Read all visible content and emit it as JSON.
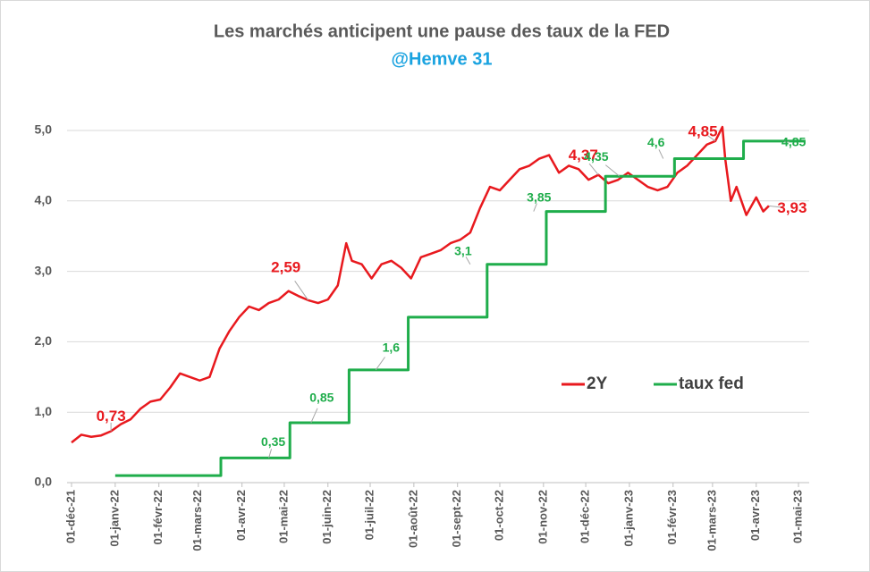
{
  "chart_data": {
    "type": "line",
    "title": "Les marchés anticipent une pause des taux de la FED",
    "subtitle": "@Hemve 31",
    "xlim": [
      "2021-12-01",
      "2023-05-01"
    ],
    "xticks": [
      {
        "value": "2021-12-01",
        "label": "01-déc-21"
      },
      {
        "value": "2022-01-01",
        "label": "01-janv-22"
      },
      {
        "value": "2022-02-01",
        "label": "01-févr-22"
      },
      {
        "value": "2022-03-01",
        "label": "01-mars-22"
      },
      {
        "value": "2022-04-01",
        "label": "01-avr-22"
      },
      {
        "value": "2022-05-01",
        "label": "01-mai-22"
      },
      {
        "value": "2022-06-01",
        "label": "01-juin-22"
      },
      {
        "value": "2022-07-01",
        "label": "01-juil-22"
      },
      {
        "value": "2022-08-01",
        "label": "01-août-22"
      },
      {
        "value": "2022-09-01",
        "label": "01-sept-22"
      },
      {
        "value": "2022-10-01",
        "label": "01-oct-22"
      },
      {
        "value": "2022-11-01",
        "label": "01-nov-22"
      },
      {
        "value": "2022-12-01",
        "label": "01-déc-22"
      },
      {
        "value": "2023-01-01",
        "label": "01-janv-23"
      },
      {
        "value": "2023-02-01",
        "label": "01-févr-23"
      },
      {
        "value": "2023-03-01",
        "label": "01-mars-23"
      },
      {
        "value": "2023-04-01",
        "label": "01-avr-23"
      },
      {
        "value": "2023-05-01",
        "label": "01-mai-23"
      }
    ],
    "ylim": [
      0,
      5
    ],
    "yticks": [
      {
        "value": 0,
        "label": "0,0"
      },
      {
        "value": 1,
        "label": "1,0"
      },
      {
        "value": 2,
        "label": "2,0"
      },
      {
        "value": 3,
        "label": "3,0"
      },
      {
        "value": 4,
        "label": "4,0"
      },
      {
        "value": 5,
        "label": "5,0"
      }
    ],
    "grid": true,
    "legend": "right",
    "series": [
      {
        "name": "2Y",
        "color": "#e8191e",
        "step": false,
        "x": [
          "2021-12-01",
          "2021-12-08",
          "2021-12-15",
          "2021-12-22",
          "2021-12-29",
          "2022-01-05",
          "2022-01-12",
          "2022-01-19",
          "2022-01-26",
          "2022-02-02",
          "2022-02-09",
          "2022-02-16",
          "2022-02-23",
          "2022-03-02",
          "2022-03-09",
          "2022-03-16",
          "2022-03-23",
          "2022-03-30",
          "2022-04-06",
          "2022-04-13",
          "2022-04-20",
          "2022-04-27",
          "2022-05-04",
          "2022-05-11",
          "2022-05-18",
          "2022-05-25",
          "2022-06-01",
          "2022-06-08",
          "2022-06-14",
          "2022-06-18",
          "2022-06-25",
          "2022-07-02",
          "2022-07-09",
          "2022-07-16",
          "2022-07-23",
          "2022-07-30",
          "2022-08-06",
          "2022-08-13",
          "2022-08-20",
          "2022-08-27",
          "2022-09-03",
          "2022-09-10",
          "2022-09-17",
          "2022-09-24",
          "2022-10-01",
          "2022-10-08",
          "2022-10-15",
          "2022-10-22",
          "2022-10-29",
          "2022-11-05",
          "2022-11-12",
          "2022-11-19",
          "2022-11-26",
          "2022-12-03",
          "2022-12-10",
          "2022-12-17",
          "2022-12-24",
          "2022-12-31",
          "2023-01-07",
          "2023-01-14",
          "2023-01-21",
          "2023-01-28",
          "2023-02-04",
          "2023-02-11",
          "2023-02-18",
          "2023-02-25",
          "2023-03-03",
          "2023-03-08",
          "2023-03-10",
          "2023-03-14",
          "2023-03-18",
          "2023-03-25",
          "2023-04-01",
          "2023-04-06",
          "2023-04-10"
        ],
        "values": [
          0.57,
          0.68,
          0.65,
          0.67,
          0.73,
          0.83,
          0.9,
          1.05,
          1.15,
          1.18,
          1.35,
          1.55,
          1.5,
          1.45,
          1.5,
          1.9,
          2.15,
          2.35,
          2.5,
          2.45,
          2.55,
          2.6,
          2.72,
          2.65,
          2.59,
          2.55,
          2.6,
          2.8,
          3.4,
          3.15,
          3.1,
          2.9,
          3.1,
          3.15,
          3.05,
          2.9,
          3.2,
          3.25,
          3.3,
          3.4,
          3.45,
          3.55,
          3.9,
          4.2,
          4.15,
          4.3,
          4.45,
          4.5,
          4.6,
          4.65,
          4.4,
          4.5,
          4.45,
          4.3,
          4.37,
          4.25,
          4.3,
          4.4,
          4.3,
          4.2,
          4.15,
          4.2,
          4.4,
          4.5,
          4.65,
          4.8,
          4.85,
          5.05,
          4.6,
          4.0,
          4.2,
          3.8,
          4.05,
          3.85,
          3.93
        ]
      },
      {
        "name": "taux fed",
        "color": "#1fad4b",
        "step": true,
        "x": [
          "2022-01-01",
          "2022-03-17",
          "2022-05-05",
          "2022-06-16",
          "2022-07-28",
          "2022-09-22",
          "2022-11-03",
          "2022-12-15",
          "2023-02-02",
          "2023-03-23",
          "2023-05-06"
        ],
        "values": [
          0.1,
          0.35,
          0.85,
          1.6,
          2.35,
          3.1,
          3.85,
          4.35,
          4.6,
          4.85,
          4.85
        ]
      }
    ],
    "annotations": [
      {
        "series": 0,
        "x": "2021-12-29",
        "value": 0.73,
        "text": "0,73"
      },
      {
        "series": 0,
        "x": "2022-05-18",
        "value": 2.59,
        "text": "2,59"
      },
      {
        "series": 0,
        "x": "2022-12-10",
        "value": 4.37,
        "text": "4,37"
      },
      {
        "series": 0,
        "x": "2023-03-03",
        "value": 4.85,
        "text": "4,85"
      },
      {
        "series": 0,
        "x": "2023-04-10",
        "value": 3.93,
        "text": "3,93"
      },
      {
        "series": 1,
        "x": "2022-04-20",
        "value": 0.35,
        "text": "0,35"
      },
      {
        "series": 1,
        "x": "2022-05-20",
        "value": 0.85,
        "text": "0,85"
      },
      {
        "series": 1,
        "x": "2022-07-05",
        "value": 1.6,
        "text": "1,6"
      },
      {
        "series": 1,
        "x": "2022-09-10",
        "value": 3.1,
        "text": "3,1"
      },
      {
        "series": 1,
        "x": "2022-10-25",
        "value": 3.85,
        "text": "3,85"
      },
      {
        "series": 1,
        "x": "2022-12-25",
        "value": 4.35,
        "text": "4,35"
      },
      {
        "series": 1,
        "x": "2023-01-25",
        "value": 4.6,
        "text": "4,6"
      },
      {
        "series": 1,
        "x": "2023-04-20",
        "value": 4.85,
        "text": "4,85"
      }
    ]
  }
}
